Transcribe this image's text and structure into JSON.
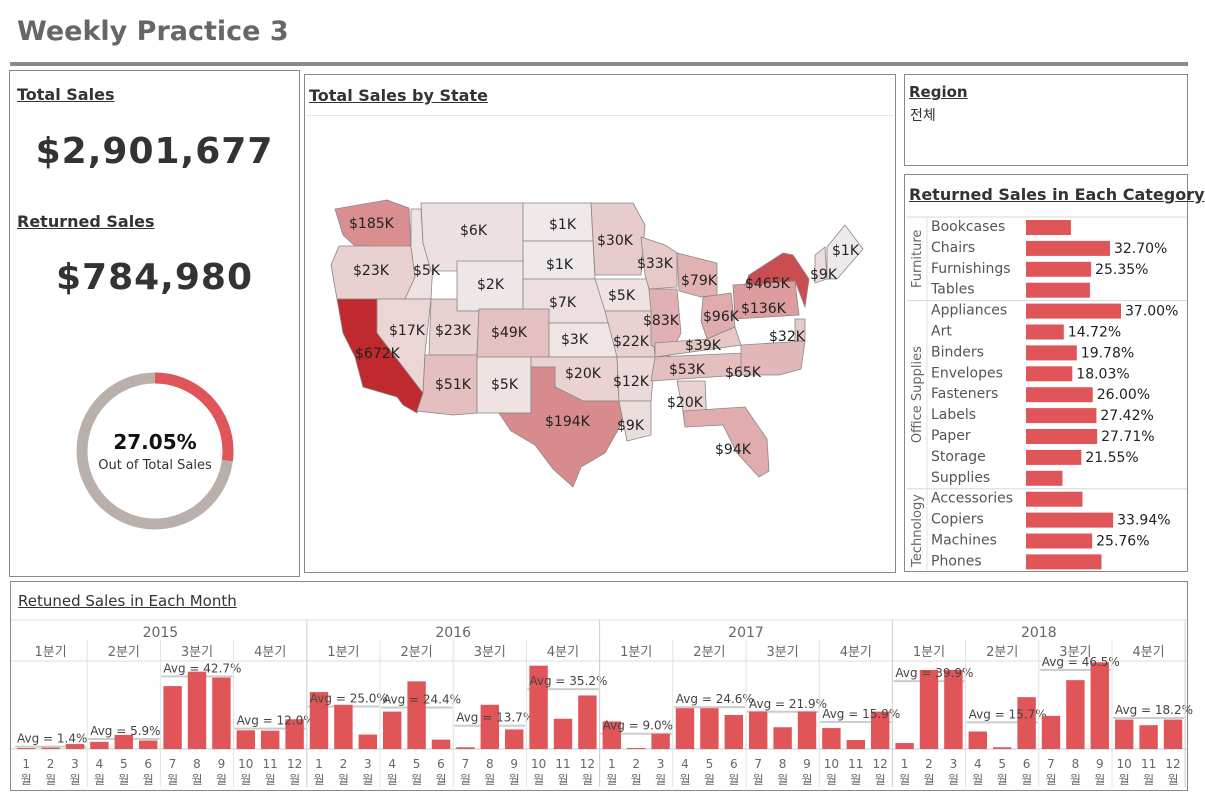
{
  "page": {
    "title": "Weekly Practice 3"
  },
  "kpi": {
    "total_sales_title": "Total Sales",
    "total_sales_value": "$2,901,677",
    "returned_sales_title": "Returned Sales",
    "returned_sales_value": "$784,980",
    "donut_percent_label": "27.05%",
    "donut_percent": 27.05,
    "donut_caption": "Out of Total Sales",
    "colors": {
      "accent": "#e05558",
      "track": "#bab0ab"
    }
  },
  "map": {
    "title": "Total Sales by State",
    "colors": {
      "low": "#f1efef",
      "high": "#c0292d",
      "border": "#888888"
    },
    "labels": [
      {
        "text": "$185K",
        "state": "WA",
        "value": 185
      },
      {
        "text": "$23K",
        "state": "OR",
        "value": 23
      },
      {
        "text": "$672K",
        "state": "CA",
        "value": 672
      },
      {
        "text": "$5K",
        "state": "ID",
        "value": 5
      },
      {
        "text": "$6K",
        "state": "MT",
        "value": 6
      },
      {
        "text": "$1K",
        "state": "ND",
        "value": 1
      },
      {
        "text": "$1K",
        "state": "SD",
        "value": 1
      },
      {
        "text": "$2K",
        "state": "WY",
        "value": 2
      },
      {
        "text": "$7K",
        "state": "NE",
        "value": 7
      },
      {
        "text": "$17K",
        "state": "NV",
        "value": 17
      },
      {
        "text": "$23K",
        "state": "UT",
        "value": 23
      },
      {
        "text": "$49K",
        "state": "CO",
        "value": 49
      },
      {
        "text": "$3K",
        "state": "KS",
        "value": 3
      },
      {
        "text": "$51K",
        "state": "AZ",
        "value": 51
      },
      {
        "text": "$5K",
        "state": "NM",
        "value": 5
      },
      {
        "text": "$20K",
        "state": "OK",
        "value": 20
      },
      {
        "text": "$194K",
        "state": "TX",
        "value": 194
      },
      {
        "text": "$30K",
        "state": "MN",
        "value": 30
      },
      {
        "text": "$5K",
        "state": "IA",
        "value": 5
      },
      {
        "text": "$22K",
        "state": "MO",
        "value": 22
      },
      {
        "text": "$12K",
        "state": "AR",
        "value": 12
      },
      {
        "text": "$9K",
        "state": "LA",
        "value": 9
      },
      {
        "text": "$33K",
        "state": "WI",
        "value": 33
      },
      {
        "text": "$83K",
        "state": "IL",
        "value": 83
      },
      {
        "text": "$79K",
        "state": "MI",
        "value": 79
      },
      {
        "text": "$96K",
        "state": "OH",
        "value": 96
      },
      {
        "text": "$39K",
        "state": "KY",
        "value": 39
      },
      {
        "text": "$53K",
        "state": "TN",
        "value": 53
      },
      {
        "text": "$20K",
        "state": "AL",
        "value": 20
      },
      {
        "text": "$94K",
        "state": "FL",
        "value": 94
      },
      {
        "text": "$65K",
        "state": "NC",
        "value": 65
      },
      {
        "text": "$136K",
        "state": "PA",
        "value": 136
      },
      {
        "text": "$465K",
        "state": "NY",
        "value": 465
      },
      {
        "text": "$32K",
        "state": "DE",
        "value": 32
      },
      {
        "text": "$9K",
        "state": "NH",
        "value": 9
      },
      {
        "text": "$1K",
        "state": "ME",
        "value": 1
      }
    ]
  },
  "region_filter": {
    "title": "Region",
    "value": "전체"
  },
  "category": {
    "title": "Returned Sales in Each Category",
    "bar_color": "#e05558",
    "groups": [
      {
        "name": "Furniture",
        "items": [
          {
            "label": "Bookcases",
            "value": 17.5,
            "pct": ""
          },
          {
            "label": "Chairs",
            "value": 32.7,
            "pct": "32.70%"
          },
          {
            "label": "Furnishings",
            "value": 25.35,
            "pct": "25.35%"
          },
          {
            "label": "Tables",
            "value": 24.9,
            "pct": ""
          }
        ]
      },
      {
        "name": "Office Supplies",
        "items": [
          {
            "label": "Appliances",
            "value": 37.0,
            "pct": "37.00%"
          },
          {
            "label": "Art",
            "value": 14.72,
            "pct": "14.72%"
          },
          {
            "label": "Binders",
            "value": 19.78,
            "pct": "19.78%"
          },
          {
            "label": "Envelopes",
            "value": 18.03,
            "pct": "18.03%"
          },
          {
            "label": "Fasteners",
            "value": 26.0,
            "pct": "26.00%"
          },
          {
            "label": "Labels",
            "value": 27.42,
            "pct": "27.42%"
          },
          {
            "label": "Paper",
            "value": 27.71,
            "pct": "27.71%"
          },
          {
            "label": "Storage",
            "value": 21.55,
            "pct": "21.55%"
          },
          {
            "label": "Supplies",
            "value": 14.2,
            "pct": ""
          }
        ]
      },
      {
        "name": "Technology",
        "items": [
          {
            "label": "Accessories",
            "value": 22.0,
            "pct": ""
          },
          {
            "label": "Copiers",
            "value": 33.94,
            "pct": "33.94%"
          },
          {
            "label": "Machines",
            "value": 25.76,
            "pct": "25.76%"
          },
          {
            "label": "Phones",
            "value": 29.4,
            "pct": ""
          }
        ]
      }
    ]
  },
  "monthly": {
    "title": "Retuned Sales in Each Month",
    "bar_color": "#e05558",
    "avg_band_color": "#cccccc",
    "y_max": 50,
    "years": [
      {
        "year": "2015",
        "quarters": [
          {
            "label": "1분기",
            "avg": "Avg = 1.4%",
            "avg_value": 1.4,
            "months": [
              {
                "m": "1",
                "v": 0.5
              },
              {
                "m": "2",
                "v": 0.8
              },
              {
                "m": "3",
                "v": 2.9
              }
            ]
          },
          {
            "label": "2분기",
            "avg": "Avg = 5.9%",
            "avg_value": 5.9,
            "months": [
              {
                "m": "4",
                "v": 4.2
              },
              {
                "m": "5",
                "v": 8.3
              },
              {
                "m": "6",
                "v": 5.0
              }
            ]
          },
          {
            "label": "3분기",
            "avg": "Avg = 42.7%",
            "avg_value": 42.7,
            "months": [
              {
                "m": "7",
                "v": 37.0
              },
              {
                "m": "8",
                "v": 45.5
              },
              {
                "m": "9",
                "v": 42.0
              }
            ]
          },
          {
            "label": "4분기",
            "avg": "Avg = 12.0%",
            "avg_value": 12.0,
            "months": [
              {
                "m": "10",
                "v": 11.0
              },
              {
                "m": "11",
                "v": 10.8
              },
              {
                "m": "12",
                "v": 17.5
              }
            ]
          }
        ]
      },
      {
        "year": "2016",
        "quarters": [
          {
            "label": "1분기",
            "avg": "Avg = 25.0%",
            "avg_value": 25.0,
            "months": [
              {
                "m": "1",
                "v": 33.5
              },
              {
                "m": "2",
                "v": 26.0
              },
              {
                "m": "3",
                "v": 8.5
              }
            ]
          },
          {
            "label": "2분기",
            "avg": "Avg = 24.4%",
            "avg_value": 24.4,
            "months": [
              {
                "m": "4",
                "v": 22.0
              },
              {
                "m": "5",
                "v": 39.8
              },
              {
                "m": "6",
                "v": 5.5
              }
            ]
          },
          {
            "label": "3분기",
            "avg": "Avg = 13.7%",
            "avg_value": 13.7,
            "months": [
              {
                "m": "7",
                "v": 1.0
              },
              {
                "m": "8",
                "v": 26.0
              },
              {
                "m": "9",
                "v": 11.5
              }
            ]
          },
          {
            "label": "4분기",
            "avg": "Avg = 35.2%",
            "avg_value": 35.2,
            "months": [
              {
                "m": "10",
                "v": 49.0
              },
              {
                "m": "11",
                "v": 17.8
              },
              {
                "m": "12",
                "v": 31.5
              }
            ]
          }
        ]
      },
      {
        "year": "2017",
        "quarters": [
          {
            "label": "1분기",
            "avg": "Avg = 9.0%",
            "avg_value": 9.0,
            "months": [
              {
                "m": "1",
                "v": 16.2
              },
              {
                "m": "2",
                "v": 0.5
              },
              {
                "m": "3",
                "v": 9.0
              }
            ]
          },
          {
            "label": "2분기",
            "avg": "Avg = 24.6%",
            "avg_value": 24.6,
            "months": [
              {
                "m": "4",
                "v": 24.0
              },
              {
                "m": "5",
                "v": 24.0
              },
              {
                "m": "6",
                "v": 20.0
              }
            ]
          },
          {
            "label": "3분기",
            "avg": "Avg = 21.9%",
            "avg_value": 21.9,
            "months": [
              {
                "m": "7",
                "v": 22.0
              },
              {
                "m": "8",
                "v": 12.8
              },
              {
                "m": "9",
                "v": 22.0
              }
            ]
          },
          {
            "label": "4분기",
            "avg": "Avg = 15.9%",
            "avg_value": 15.9,
            "months": [
              {
                "m": "10",
                "v": 12.3
              },
              {
                "m": "11",
                "v": 5.3
              },
              {
                "m": "12",
                "v": 22.0
              }
            ]
          }
        ]
      },
      {
        "year": "2018",
        "quarters": [
          {
            "label": "1분기",
            "avg": "Avg = 39.9%",
            "avg_value": 39.9,
            "months": [
              {
                "m": "1",
                "v": 3.5
              },
              {
                "m": "2",
                "v": 46.5
              },
              {
                "m": "3",
                "v": 46.5
              }
            ]
          },
          {
            "label": "2분기",
            "avg": "Avg = 15.7%",
            "avg_value": 15.7,
            "months": [
              {
                "m": "4",
                "v": 10.3
              },
              {
                "m": "5",
                "v": 1.0
              },
              {
                "m": "6",
                "v": 30.5
              }
            ]
          },
          {
            "label": "3분기",
            "avg": "Avg = 46.5%",
            "avg_value": 46.5,
            "months": [
              {
                "m": "7",
                "v": 19.5
              },
              {
                "m": "8",
                "v": 40.5
              },
              {
                "m": "9",
                "v": 51.0
              }
            ]
          },
          {
            "label": "4분기",
            "avg": "Avg = 18.2%",
            "avg_value": 18.2,
            "months": [
              {
                "m": "10",
                "v": 17.3
              },
              {
                "m": "11",
                "v": 14.0
              },
              {
                "m": "12",
                "v": 17.3
              }
            ]
          }
        ]
      }
    ],
    "month_prefix": "월"
  }
}
